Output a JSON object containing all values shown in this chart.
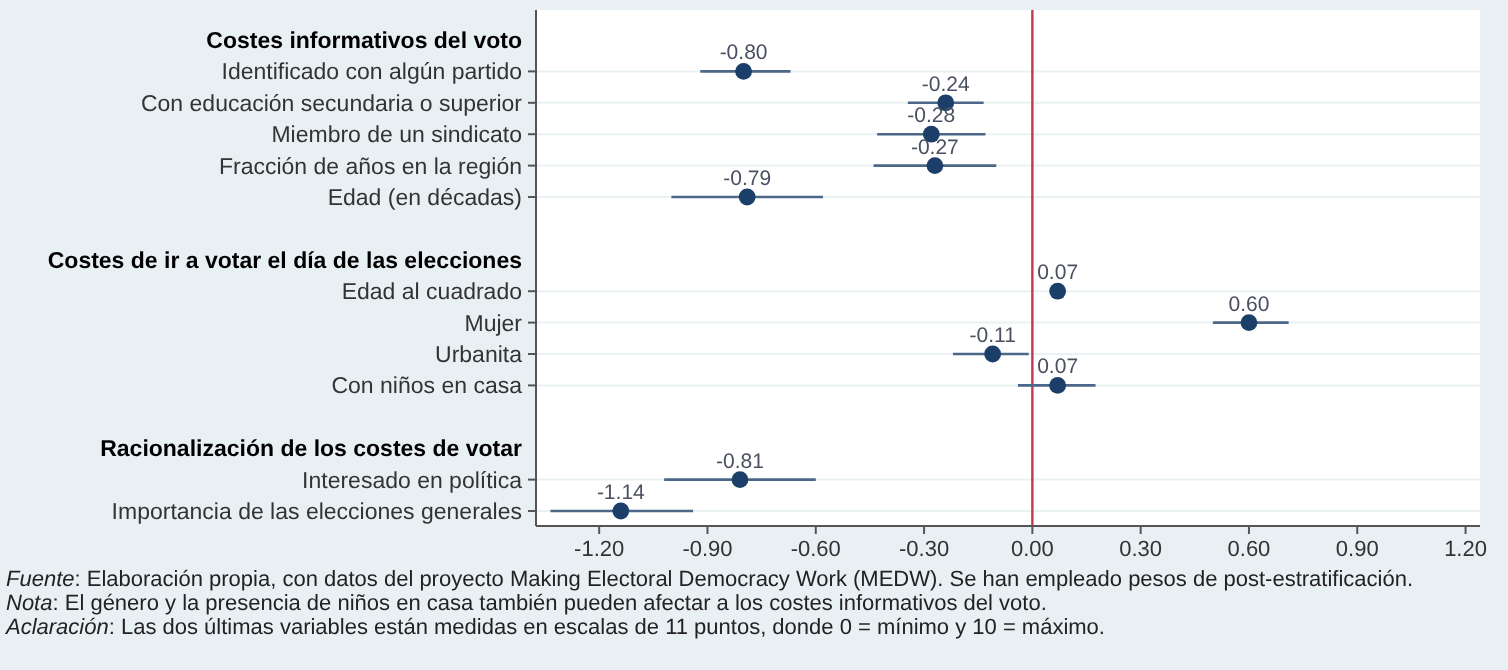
{
  "chart_data": {
    "type": "scatter",
    "orientation": "horizontal",
    "categories": [
      "Costes informativos del voto",
      "Identificado con algún partido",
      "Con educación secundaria o superior",
      "Miembro de un sindicato",
      "Fracción de años en la región",
      "Edad (en décadas)",
      null,
      "Costes de ir a votar el día de las elecciones",
      "Edad al cuadrado",
      "Mujer",
      "Urbanita",
      "Con niños en casa",
      null,
      "Racionalización de los costes de votar",
      "Interesado en política",
      "Importancia de las elecciones generales"
    ],
    "series": [
      {
        "color": "#1b3f69",
        "values": [
          null,
          -0.8,
          -0.24,
          -0.28,
          -0.27,
          -0.79,
          null,
          null,
          0.07,
          0.6,
          -0.11,
          0.07,
          null,
          null,
          -0.81,
          -1.14
        ],
        "value_labels": [
          null,
          "-0.80",
          "-0.24",
          "-0.28",
          "-0.27",
          "-0.79",
          null,
          null,
          "0.07",
          "0.60",
          "-0.11",
          "0.07",
          null,
          null,
          "-0.81",
          "-1.14"
        ],
        "errors": [
          null,
          [
            -0.92,
            -0.67
          ],
          [
            -0.345,
            -0.135
          ],
          [
            -0.43,
            -0.13
          ],
          [
            -0.44,
            -0.1
          ],
          [
            -1.0,
            -0.58
          ],
          null,
          null,
          null,
          [
            0.5,
            0.71
          ],
          [
            -0.22,
            -0.01
          ],
          [
            -0.04,
            0.175
          ],
          null,
          null,
          [
            -1.02,
            -0.6
          ],
          [
            -1.335,
            -0.94
          ]
        ]
      }
    ],
    "marker": "circle",
    "grid": "y",
    "xlim": [
      -1.375,
      1.24
    ],
    "xticks": [
      {
        "value": -1.2,
        "label": "-1.20"
      },
      {
        "value": -0.9,
        "label": "-0.90"
      },
      {
        "value": -0.6,
        "label": "-0.60"
      },
      {
        "value": -0.3,
        "label": "-0.30"
      },
      {
        "value": 0,
        "label": "0.00"
      },
      {
        "value": 0.3,
        "label": "0.30"
      },
      {
        "value": 0.6,
        "label": "0.60"
      },
      {
        "value": 0.9,
        "label": "0.90"
      },
      {
        "value": 1.2,
        "label": "1.20"
      }
    ],
    "ref_lines": [
      {
        "axis": "x",
        "value": 0,
        "color": "#c0394e"
      }
    ],
    "annotations": [
      "Fuente: Elaboración propia, con datos del proyecto Making Electoral Democracy Work (MEDW). Se han empleado pesos de post-estratificación.",
      "Nota: El género y la presencia de niños en casa también pueden afectar a los costes informativos del voto.",
      "Aclaración: Las dos últimas variables están medidas en escalas de 11 puntos, donde 0 = mínimo y 10 = máximo."
    ]
  }
}
